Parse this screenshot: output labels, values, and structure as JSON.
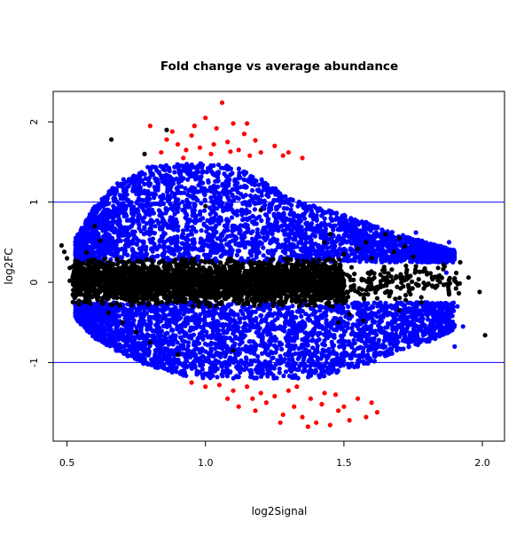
{
  "chart_data": {
    "type": "scatter",
    "title": "Fold change vs average abundance",
    "xlabel": "log2Signal",
    "ylabel": "log2FC",
    "xlim": [
      0.45,
      2.08
    ],
    "ylim": [
      -1.98,
      2.38
    ],
    "x_ticks": [
      0.5,
      1.0,
      1.5,
      2.0
    ],
    "x_tick_labels": [
      "0.5",
      "1.0",
      "1.5",
      "2.0"
    ],
    "y_ticks": [
      -1,
      0,
      1,
      2
    ],
    "y_tick_labels": [
      "-1",
      "0",
      "1",
      "2"
    ],
    "reference_lines": [
      {
        "orientation": "horizontal",
        "y": 1,
        "color": "#0000ff"
      },
      {
        "orientation": "horizontal",
        "y": -1,
        "color": "#0000ff"
      }
    ],
    "grid": false,
    "legend": "none",
    "series": [
      {
        "color": "#000000",
        "description": "points with |log2FC| < 0.3 or sparse outliers",
        "points": [
          [
            0.48,
            0.46
          ],
          [
            0.49,
            0.38
          ],
          [
            0.5,
            0.3
          ],
          [
            0.51,
            0.18
          ],
          [
            0.52,
            0.06
          ],
          [
            0.51,
            0.02
          ],
          [
            0.53,
            0.27
          ],
          [
            0.55,
            0.14
          ],
          [
            0.57,
            0.37
          ],
          [
            0.59,
            0.28
          ],
          [
            0.6,
            0.7
          ],
          [
            0.62,
            0.52
          ],
          [
            0.61,
            -0.22
          ],
          [
            0.65,
            -0.38
          ],
          [
            0.66,
            1.78
          ],
          [
            0.7,
            -0.5
          ],
          [
            0.75,
            -0.62
          ],
          [
            0.78,
            1.6
          ],
          [
            0.8,
            -0.75
          ],
          [
            0.86,
            1.9
          ],
          [
            0.9,
            -0.9
          ],
          [
            1.0,
            0.95
          ],
          [
            1.1,
            -0.85
          ],
          [
            1.2,
            0.9
          ],
          [
            1.43,
            0.5
          ],
          [
            1.46,
            -0.3
          ],
          [
            1.5,
            0.35
          ],
          [
            1.52,
            -0.4
          ],
          [
            1.55,
            0.42
          ],
          [
            1.57,
            -0.48
          ],
          [
            1.6,
            0.3
          ],
          [
            1.62,
            -0.2
          ],
          [
            1.64,
            0.15
          ],
          [
            1.66,
            -0.12
          ],
          [
            1.68,
            0.38
          ],
          [
            1.7,
            -0.35
          ],
          [
            1.72,
            0.45
          ],
          [
            1.74,
            -0.08
          ],
          [
            1.76,
            0.2
          ],
          [
            1.78,
            -0.25
          ],
          [
            1.8,
            0.1
          ],
          [
            1.82,
            -0.05
          ],
          [
            1.84,
            0.18
          ],
          [
            1.86,
            0.22
          ],
          [
            1.88,
            -0.15
          ],
          [
            1.9,
            0.05
          ],
          [
            1.92,
            0.25
          ],
          [
            1.95,
            0.06
          ],
          [
            1.99,
            -0.12
          ],
          [
            2.01,
            -0.66
          ],
          [
            1.7,
            0.55
          ],
          [
            1.65,
            0.6
          ],
          [
            1.75,
            0.32
          ],
          [
            1.45,
            0.6
          ],
          [
            1.48,
            -0.5
          ],
          [
            1.58,
            0.5
          ]
        ],
        "bands": [
          {
            "x_start": 0.52,
            "x_end": 1.5,
            "y_center": 0.0,
            "half_width": 0.3,
            "count": 3200
          },
          {
            "x_start": 1.5,
            "x_end": 1.92,
            "y_center": 0.0,
            "half_width": 0.25,
            "count": 160
          }
        ]
      },
      {
        "color": "#0000ff",
        "description": "points with 0.3 <= |log2FC| < 1.5",
        "points": [
          [
            1.9,
            -0.8
          ],
          [
            1.93,
            -0.55
          ],
          [
            1.88,
            0.5
          ],
          [
            1.8,
            -0.35
          ],
          [
            1.84,
            -0.48
          ],
          [
            1.76,
            0.62
          ],
          [
            1.72,
            -0.6
          ],
          [
            1.78,
            0.42
          ],
          [
            1.82,
            0.3
          ],
          [
            1.69,
            0.55
          ],
          [
            1.66,
            -0.72
          ],
          [
            1.62,
            -0.9
          ],
          [
            1.58,
            0.75
          ],
          [
            1.55,
            -1.05
          ],
          [
            1.65,
            0.35
          ],
          [
            1.87,
            0.12
          ],
          [
            1.91,
            -0.3
          ]
        ],
        "envelope": {
          "upper_x": [
            0.53,
            0.6,
            0.7,
            0.8,
            0.9,
            1.0,
            1.1,
            1.2,
            1.3,
            1.4,
            1.5,
            1.6,
            1.7,
            1.8,
            1.9
          ],
          "upper_y": [
            0.55,
            0.95,
            1.3,
            1.45,
            1.48,
            1.48,
            1.45,
            1.3,
            1.05,
            0.95,
            0.85,
            0.72,
            0.6,
            0.5,
            0.4
          ],
          "lower_y": [
            -0.45,
            -0.7,
            -0.9,
            -1.05,
            -1.15,
            -1.2,
            -1.2,
            -1.2,
            -1.2,
            -1.2,
            -1.1,
            -1.0,
            -0.85,
            -0.75,
            -0.6
          ],
          "count": 6000
        }
      },
      {
        "color": "#ff0000",
        "description": "points with |log2FC| >= 1.5 approximately",
        "points": [
          [
            0.8,
            1.95
          ],
          [
            0.84,
            1.62
          ],
          [
            0.86,
            1.78
          ],
          [
            0.9,
            1.72
          ],
          [
            0.92,
            1.55
          ],
          [
            0.95,
            1.83
          ],
          [
            0.98,
            1.68
          ],
          [
            1.0,
            2.05
          ],
          [
            1.02,
            1.6
          ],
          [
            1.04,
            1.92
          ],
          [
            1.06,
            2.24
          ],
          [
            1.08,
            1.75
          ],
          [
            1.1,
            1.98
          ],
          [
            1.12,
            1.65
          ],
          [
            1.14,
            1.85
          ],
          [
            1.16,
            1.58
          ],
          [
            1.18,
            1.77
          ],
          [
            1.2,
            1.62
          ],
          [
            1.25,
            1.7
          ],
          [
            1.28,
            1.58
          ],
          [
            1.3,
            1.62
          ],
          [
            1.35,
            1.55
          ],
          [
            0.88,
            1.88
          ],
          [
            0.96,
            1.95
          ],
          [
            1.03,
            1.72
          ],
          [
            1.09,
            1.63
          ],
          [
            1.15,
            1.98
          ],
          [
            0.93,
            1.65
          ],
          [
            0.95,
            -1.25
          ],
          [
            1.0,
            -1.3
          ],
          [
            1.05,
            -1.28
          ],
          [
            1.08,
            -1.45
          ],
          [
            1.1,
            -1.35
          ],
          [
            1.12,
            -1.55
          ],
          [
            1.15,
            -1.3
          ],
          [
            1.18,
            -1.6
          ],
          [
            1.2,
            -1.38
          ],
          [
            1.22,
            -1.5
          ],
          [
            1.25,
            -1.42
          ],
          [
            1.28,
            -1.65
          ],
          [
            1.3,
            -1.35
          ],
          [
            1.32,
            -1.55
          ],
          [
            1.35,
            -1.68
          ],
          [
            1.38,
            -1.45
          ],
          [
            1.4,
            -1.75
          ],
          [
            1.42,
            -1.52
          ],
          [
            1.45,
            -1.78
          ],
          [
            1.48,
            -1.6
          ],
          [
            1.5,
            -1.55
          ],
          [
            1.52,
            -1.72
          ],
          [
            1.55,
            -1.45
          ],
          [
            1.58,
            -1.68
          ],
          [
            1.6,
            -1.5
          ],
          [
            1.62,
            -1.62
          ],
          [
            1.37,
            -1.8
          ],
          [
            1.27,
            -1.75
          ],
          [
            1.17,
            -1.45
          ],
          [
            1.43,
            -1.38
          ],
          [
            1.33,
            -1.3
          ],
          [
            1.47,
            -1.4
          ]
        ]
      }
    ]
  }
}
